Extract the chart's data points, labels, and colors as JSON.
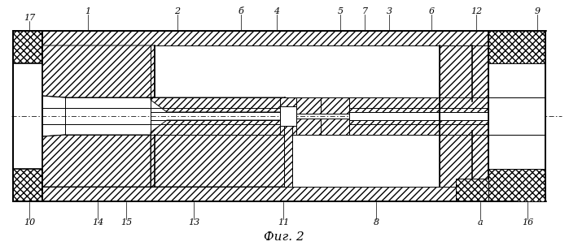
{
  "title": "Фиг. 2",
  "bg": "#ffffff",
  "lc": "#000000",
  "top_labels": [
    [
      "17",
      36,
      22
    ],
    [
      "1",
      108,
      14
    ],
    [
      "2",
      218,
      14
    ],
    [
      "б",
      296,
      14
    ],
    [
      "4",
      340,
      14
    ],
    [
      "5",
      418,
      14
    ],
    [
      "7",
      448,
      14
    ],
    [
      "3",
      478,
      14
    ],
    [
      "6",
      530,
      14
    ],
    [
      "12",
      585,
      14
    ],
    [
      "9",
      660,
      14
    ]
  ],
  "bot_labels": [
    [
      "10",
      36,
      274
    ],
    [
      "14",
      120,
      274
    ],
    [
      "15",
      155,
      274
    ],
    [
      "13",
      238,
      274
    ],
    [
      "11",
      348,
      274
    ],
    [
      "8",
      462,
      274
    ],
    [
      "а",
      590,
      274
    ],
    [
      "16",
      648,
      274
    ]
  ]
}
